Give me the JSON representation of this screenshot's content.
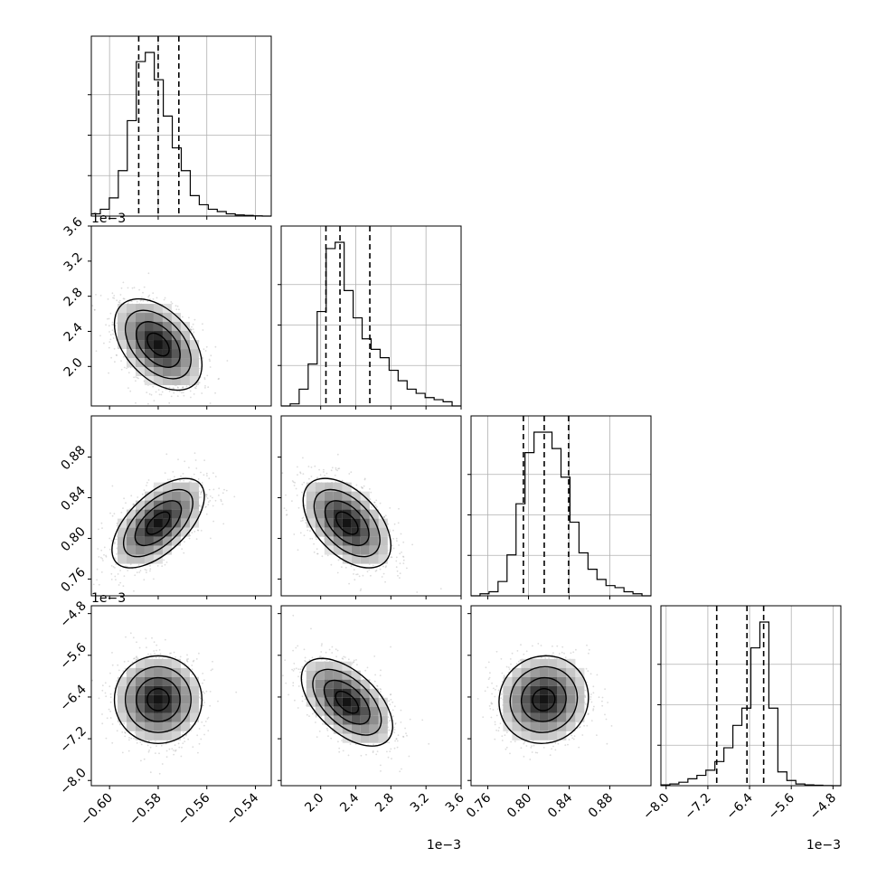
{
  "chart_data": {
    "type": "corner",
    "grid": true,
    "parameters": [
      {
        "range": [
          -0.6075,
          -0.5335
        ],
        "ticks": [
          -0.6,
          -0.58,
          -0.56,
          -0.54
        ],
        "tick_labels": [
          "−0.60",
          "−0.58",
          "−0.56",
          "−0.54"
        ],
        "offset": "",
        "quantiles": [
          -0.588,
          -0.58,
          -0.5715
        ],
        "hist": [
          1,
          3,
          8,
          20,
          42,
          68,
          72,
          60,
          44,
          30,
          20,
          9,
          5,
          3,
          2,
          1,
          0.5,
          0.3,
          0.1,
          0
        ]
      },
      {
        "range": [
          1.55,
          3.6
        ],
        "ticks": [
          2.0,
          2.4,
          2.8,
          3.2,
          3.6
        ],
        "tick_labels": [
          "2.0",
          "2.4",
          "2.8",
          "3.2",
          "3.6"
        ],
        "offset": "1e−3",
        "quantiles": [
          2.06,
          2.22,
          2.56
        ],
        "hist": [
          0,
          1,
          8,
          20,
          45,
          75,
          78,
          55,
          42,
          32,
          27,
          23,
          17,
          12,
          8,
          6,
          4,
          3,
          2,
          0
        ]
      },
      {
        "range": [
          0.7435,
          0.9205
        ],
        "ticks": [
          0.76,
          0.8,
          0.84,
          0.88
        ],
        "tick_labels": [
          "0.76",
          "0.80",
          "0.84",
          "0.88"
        ],
        "offset": "",
        "quantiles": [
          0.795,
          0.8155,
          0.8395
        ],
        "hist": [
          0,
          1,
          2,
          7,
          20,
          45,
          70,
          80,
          80,
          72,
          58,
          36,
          21,
          13,
          8,
          5,
          4,
          2,
          1,
          0
        ]
      },
      {
        "range": [
          -8.1,
          -4.65
        ],
        "ticks": [
          -8.0,
          -7.2,
          -6.4,
          -5.6,
          -4.8
        ],
        "tick_labels": [
          "−8.0",
          "−7.2",
          "−6.4",
          "−5.6",
          "−4.8"
        ],
        "offset": "1e−3",
        "quantiles": [
          -7.03,
          -6.45,
          -6.13
        ],
        "hist": [
          0.5,
          1,
          2,
          4,
          6,
          9,
          14,
          22,
          35,
          45,
          80,
          95,
          45,
          8,
          3,
          1,
          0.5,
          0.3,
          0.1,
          0
        ]
      }
    ],
    "pairs": [
      {
        "row": 1,
        "col": 0,
        "mean": [
          -0.58,
          2.25
        ],
        "sd": [
          0.009,
          0.26
        ],
        "rho": -0.45
      },
      {
        "row": 2,
        "col": 0,
        "mean": [
          -0.58,
          0.815
        ],
        "sd": [
          0.0095,
          0.022
        ],
        "rho": 0.6
      },
      {
        "row": 2,
        "col": 1,
        "mean": [
          2.3,
          0.815
        ],
        "sd": [
          0.25,
          0.022
        ],
        "rho": -0.5
      },
      {
        "row": 3,
        "col": 0,
        "mean": [
          -0.58,
          -6.45
        ],
        "sd": [
          0.009,
          0.42
        ],
        "rho": 0.0
      },
      {
        "row": 3,
        "col": 1,
        "mean": [
          2.3,
          -6.5
        ],
        "sd": [
          0.26,
          0.42
        ],
        "rho": -0.55
      },
      {
        "row": 3,
        "col": 2,
        "mean": [
          0.815,
          -6.45
        ],
        "sd": [
          0.022,
          0.42
        ],
        "rho": 0.05
      }
    ],
    "contour_levels": [
      0.5,
      1.0,
      1.5,
      2.0
    ]
  }
}
